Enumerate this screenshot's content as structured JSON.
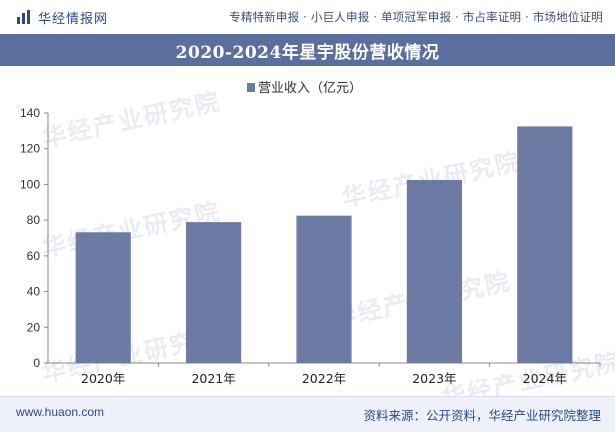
{
  "header": {
    "brand": "华经情报网",
    "tags": "专精特新申报 · 小巨人申报 · 单项冠军申报 · 市占率证明 · 市场地位证明"
  },
  "watermark": "华经产业研究院",
  "footer": {
    "website": "www.huaon.com",
    "source": "资料来源：公开资料，华经产业研究院整理"
  },
  "colors": {
    "bar": "#6b7ba3",
    "title_bg": "#5b6f9f",
    "brand": "#2b4a8b"
  },
  "chart_data": {
    "type": "bar",
    "title": "2020-2024年星宇股份营收情况",
    "categories": [
      "2020年",
      "2021年",
      "2022年",
      "2023年",
      "2024年"
    ],
    "series": [
      {
        "name": "营业收入（亿元）",
        "values": [
          73.2,
          78.9,
          82.5,
          102.5,
          132.5
        ]
      }
    ],
    "ylim": [
      0,
      140
    ],
    "yticks": [
      "0",
      "20",
      "40",
      "60",
      "80",
      "100",
      "120",
      "140"
    ],
    "grid": false,
    "legend_position": "top-center",
    "xlabel": "",
    "ylabel": ""
  }
}
